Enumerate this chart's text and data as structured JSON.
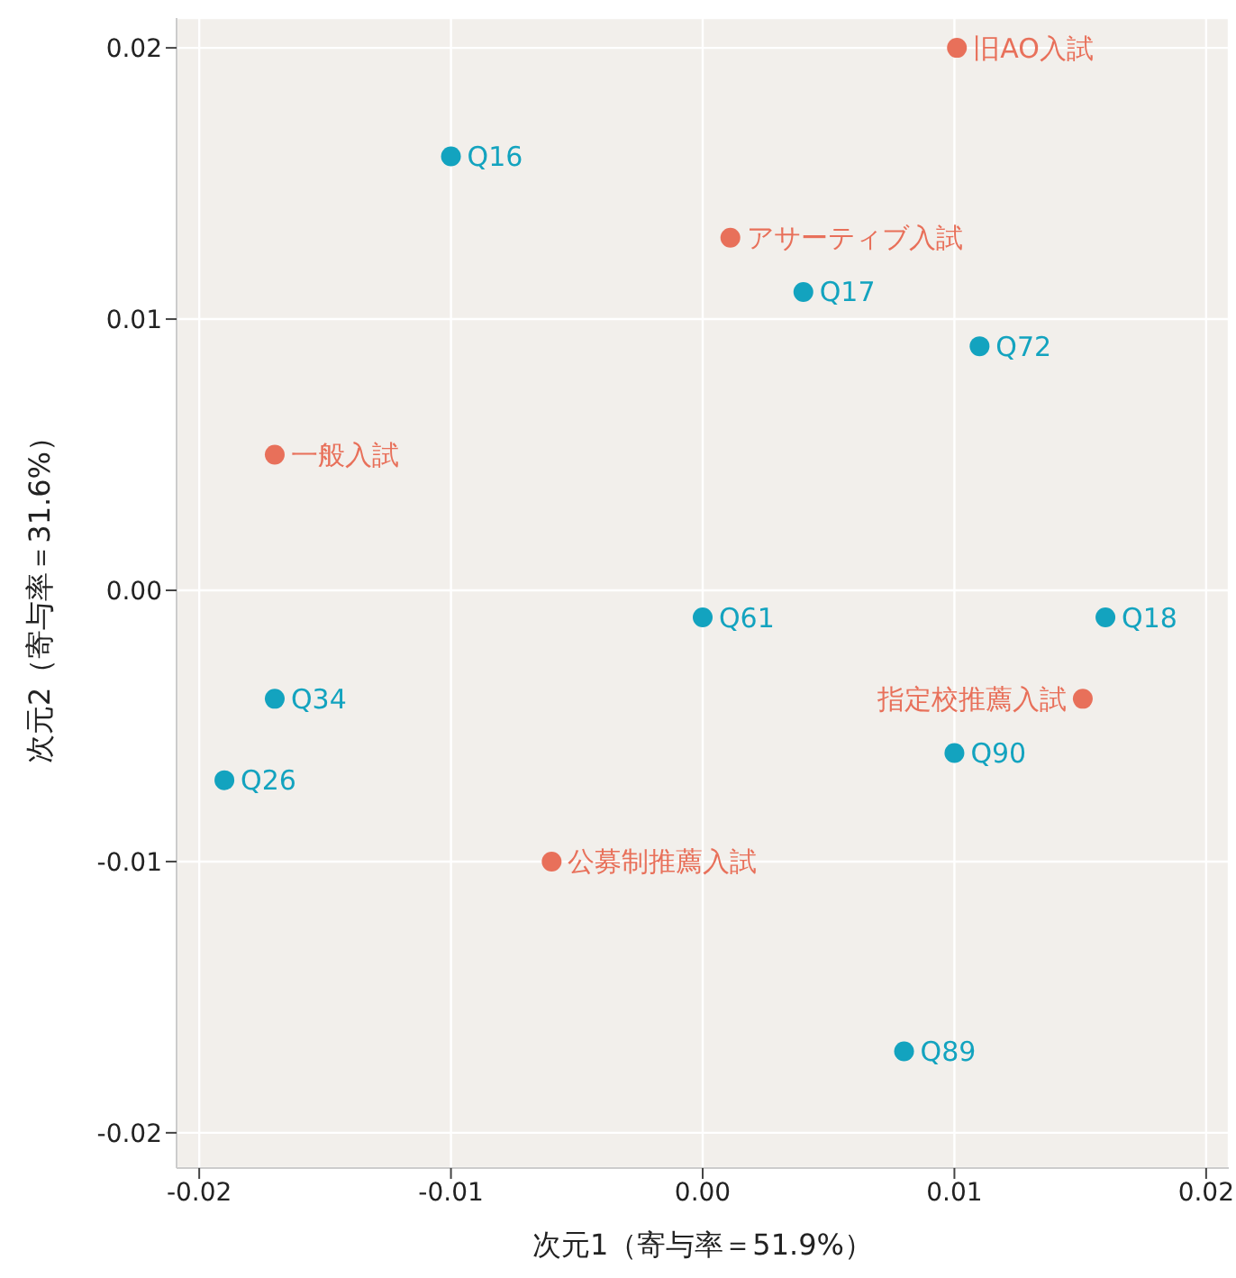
{
  "chart_data": {
    "type": "scatter",
    "xlabel": "次元1（寄与率＝51.9%）",
    "ylabel": "次元2（寄与率＝31.6%）",
    "xlim": [
      -0.0209,
      0.0209
    ],
    "ylim": [
      -0.0213,
      0.0211
    ],
    "xticks": [
      {
        "value": -0.02,
        "label": "-0.02"
      },
      {
        "value": -0.01,
        "label": "-0.01"
      },
      {
        "value": 0,
        "label": "0.00"
      },
      {
        "value": 0.01,
        "label": "0.01"
      },
      {
        "value": 0.02,
        "label": "0.02"
      }
    ],
    "yticks": [
      {
        "value": -0.02,
        "label": "-0.02"
      },
      {
        "value": -0.01,
        "label": "-0.01"
      },
      {
        "value": 0,
        "label": "0.00"
      },
      {
        "value": 0.01,
        "label": "0.01"
      },
      {
        "value": 0.02,
        "label": "0.02"
      }
    ],
    "grid": true,
    "marker": "circle",
    "series": [
      {
        "color": "#e8705a",
        "x": [
          0.0101,
          0.0011,
          -0.017,
          0.0151,
          -0.006
        ],
        "values": [
          0.02,
          0.013,
          0.005,
          -0.004,
          -0.01
        ],
        "value_labels": [
          "旧AO入試",
          "アサーティブ入試",
          "一般入試",
          "指定校推薦入試",
          "公募制推薦入試"
        ]
      },
      {
        "color": "#13a3bf",
        "x": [
          -0.01,
          0.004,
          0.011,
          0,
          0.016,
          -0.017,
          -0.019,
          0.01,
          0.008
        ],
        "values": [
          0.016,
          0.011,
          0.009,
          -0.001,
          -0.001,
          -0.004,
          -0.007,
          -0.006,
          -0.017
        ],
        "value_labels": [
          "Q16",
          "Q17",
          "Q72",
          "Q61",
          "Q18",
          "Q34",
          "Q26",
          "Q90",
          "Q89"
        ]
      }
    ]
  }
}
